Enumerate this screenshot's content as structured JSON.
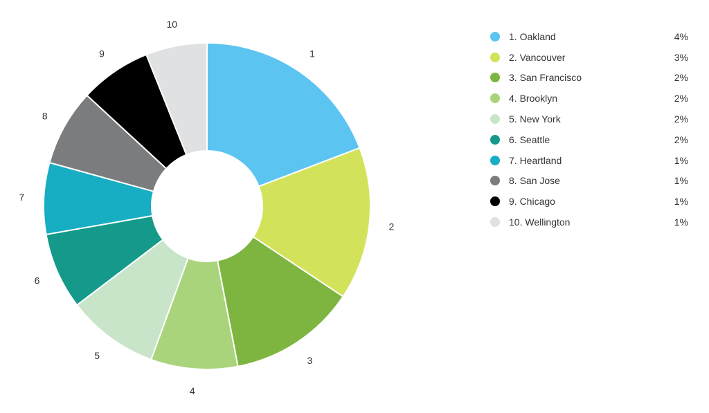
{
  "chart_data": {
    "type": "pie",
    "donut": true,
    "title": "",
    "legend_position": "right",
    "slices": [
      {
        "slice_label": "1",
        "legend_label": "1. Oakland",
        "value_label": "4%",
        "share": 0.19,
        "color": "#5bc4f1"
      },
      {
        "slice_label": "2",
        "legend_label": "2. Vancouver",
        "value_label": "3%",
        "share": 0.15,
        "color": "#d3e25b"
      },
      {
        "slice_label": "3",
        "legend_label": "3. San Francisco",
        "value_label": "2%",
        "share": 0.125,
        "color": "#7eb540"
      },
      {
        "slice_label": "4",
        "legend_label": "4. Brooklyn",
        "value_label": "2%",
        "share": 0.085,
        "color": "#a9d47c"
      },
      {
        "slice_label": "5",
        "legend_label": "5. New York",
        "value_label": "2%",
        "share": 0.09,
        "color": "#c8e5c9"
      },
      {
        "slice_label": "6",
        "legend_label": "6. Seattle",
        "value_label": "2%",
        "share": 0.075,
        "color": "#14998a"
      },
      {
        "slice_label": "7",
        "legend_label": "7. Heartland",
        "value_label": "1%",
        "share": 0.07,
        "color": "#17aec4"
      },
      {
        "slice_label": "8",
        "legend_label": "8. San Jose",
        "value_label": "1%",
        "share": 0.075,
        "color": "#7b7c7e"
      },
      {
        "slice_label": "9",
        "legend_label": "9. Chicago",
        "value_label": "1%",
        "share": 0.07,
        "color": "#000000"
      },
      {
        "slice_label": "10",
        "legend_label": "10. Wellington",
        "value_label": "1%",
        "share": 0.06,
        "color": "#e0e1e2"
      }
    ]
  }
}
